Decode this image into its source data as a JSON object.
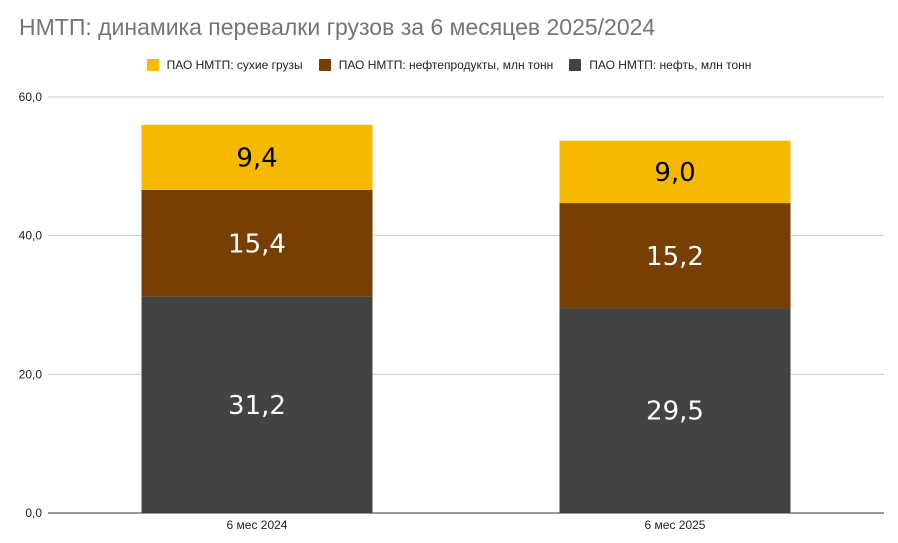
{
  "chart_data": {
    "type": "bar",
    "stacked": true,
    "title": "НМТП: динамика перевалки грузов за 6 месяцев 2025/2024",
    "categories": [
      "6 мес 2024",
      "6 мес 2025"
    ],
    "series": [
      {
        "name": "ПАО НМТП: нефть, млн тонн",
        "values": [
          31.2,
          29.5
        ],
        "labels": [
          "31,2",
          "29,5"
        ],
        "color": "#434343",
        "label_color": "#ffffff"
      },
      {
        "name": "ПАО НМТП: нефтепродукты, млн тонн",
        "values": [
          15.4,
          15.2
        ],
        "labels": [
          "15,4",
          "15,2"
        ],
        "color": "#783f04",
        "label_color": "#ffffff"
      },
      {
        "name": "ПАО НМТП: сухие грузы",
        "values": [
          9.4,
          9.0
        ],
        "labels": [
          "9,4",
          "9,0"
        ],
        "color": "#f6b900",
        "label_color": "#000000"
      }
    ],
    "legend_order": [
      2,
      1,
      0
    ],
    "ylim": [
      0,
      60
    ],
    "yticks": [
      0,
      20,
      40,
      60
    ],
    "ytick_labels": [
      "0,0",
      "20,0",
      "40,0",
      "60,0"
    ],
    "grid": true,
    "legend_position": "top"
  }
}
